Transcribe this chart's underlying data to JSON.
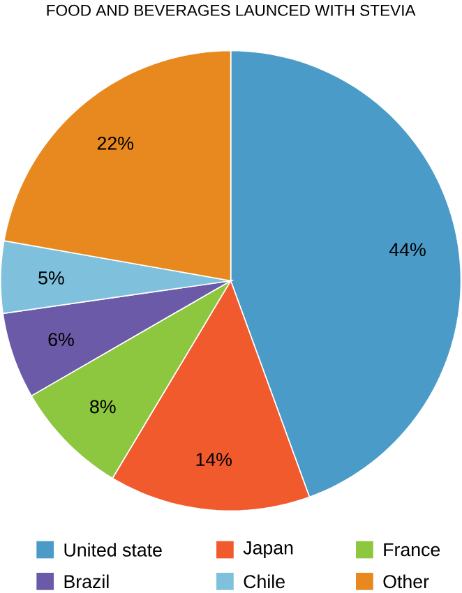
{
  "chart_data": {
    "type": "pie",
    "title": "FOOD AND BEVERAGES LAUNCED WITH STEVIA",
    "categories": [
      "United state",
      "Japan",
      "France",
      "Brazil",
      "Chile",
      "Other"
    ],
    "values": [
      44,
      14,
      8,
      6,
      5,
      22
    ],
    "value_labels": [
      "44%",
      "14%",
      "8%",
      "6%",
      "5%",
      "22%"
    ],
    "colors": [
      "#4a9bc8",
      "#f15a2c",
      "#8dc63f",
      "#6b5aa8",
      "#7fc1dc",
      "#e8891f"
    ],
    "legend": "bottom"
  }
}
